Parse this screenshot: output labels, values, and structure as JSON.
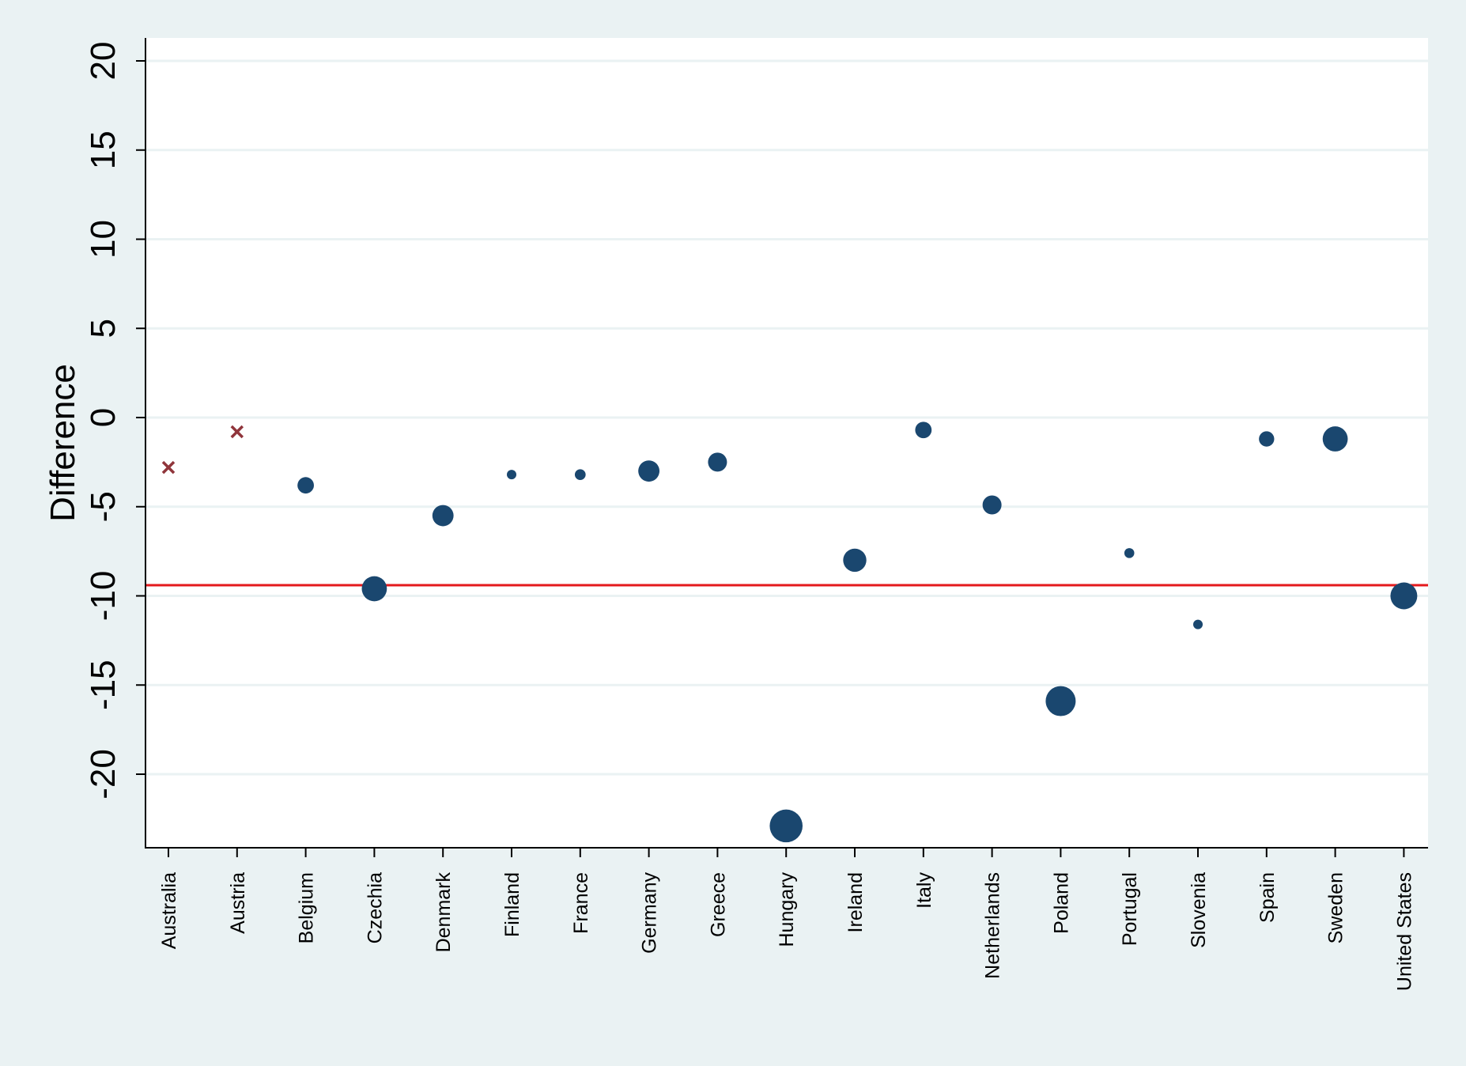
{
  "chart_data": {
    "type": "scatter",
    "title": "",
    "xlabel": "",
    "ylabel": "Difference",
    "ylim": [
      -24,
      21.3
    ],
    "yticks": [
      20,
      15,
      10,
      5,
      0,
      -5,
      -10,
      -15,
      -20
    ],
    "grid": true,
    "reference_line": {
      "y": -9.4,
      "color": "#e41a1c"
    },
    "colors": {
      "background": "#eaf2f3",
      "plot_area": "#ffffff",
      "marker": "#1a476f",
      "cross_marker": "#90353b",
      "gridline": "#eaf2f3"
    },
    "categories": [
      "Australia",
      "Austria",
      "Belgium",
      "Czechia",
      "Denmark",
      "Finland",
      "France",
      "Germany",
      "Greece",
      "Hungary",
      "Ireland",
      "Italy",
      "Netherlands",
      "Poland",
      "Portugal",
      "Slovenia",
      "Spain",
      "Sweden",
      "United States"
    ],
    "points": [
      {
        "category": "Australia",
        "y": -2.8,
        "marker": "x"
      },
      {
        "category": "Austria",
        "y": -0.8,
        "marker": "x"
      },
      {
        "category": "Belgium",
        "y": -3.8,
        "marker": "circle",
        "size": 3
      },
      {
        "category": "Czechia",
        "y": -9.6,
        "marker": "circle",
        "size": 7
      },
      {
        "category": "Denmark",
        "y": -5.5,
        "marker": "circle",
        "size": 5
      },
      {
        "category": "Finland",
        "y": -3.2,
        "marker": "circle",
        "size": 1
      },
      {
        "category": "France",
        "y": -3.2,
        "marker": "circle",
        "size": 1.3
      },
      {
        "category": "Germany",
        "y": -3.0,
        "marker": "circle",
        "size": 5
      },
      {
        "category": "Greece",
        "y": -2.5,
        "marker": "circle",
        "size": 4
      },
      {
        "category": "Hungary",
        "y": -22.9,
        "marker": "circle",
        "size": 12
      },
      {
        "category": "Ireland",
        "y": -8.0,
        "marker": "circle",
        "size": 6
      },
      {
        "category": "Italy",
        "y": -0.7,
        "marker": "circle",
        "size": 3
      },
      {
        "category": "Netherlands",
        "y": -4.9,
        "marker": "circle",
        "size": 4
      },
      {
        "category": "Poland",
        "y": -15.9,
        "marker": "circle",
        "size": 10
      },
      {
        "category": "Portugal",
        "y": -7.6,
        "marker": "circle",
        "size": 1.1
      },
      {
        "category": "Slovenia",
        "y": -11.6,
        "marker": "circle",
        "size": 1
      },
      {
        "category": "Spain",
        "y": -1.2,
        "marker": "circle",
        "size": 2.6
      },
      {
        "category": "Sweden",
        "y": -1.2,
        "marker": "circle",
        "size": 7
      },
      {
        "category": "United States",
        "y": -10.0,
        "marker": "circle",
        "size": 8
      }
    ]
  }
}
